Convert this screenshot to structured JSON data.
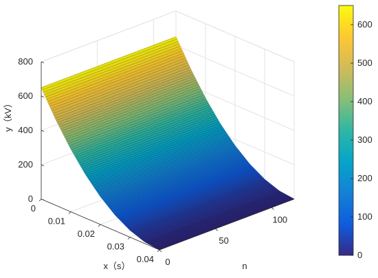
{
  "chart_data": {
    "type": "surface",
    "title": "",
    "xlabel": "x（s）",
    "ylabel": "n",
    "zlabel": "y（kV）",
    "x_range": [
      0,
      0.04
    ],
    "n_range": [
      0,
      120
    ],
    "z_range": [
      0,
      800
    ],
    "x_ticks": [
      "0",
      "0.01",
      "0.02",
      "0.03",
      "0.04"
    ],
    "n_ticks": [
      "0",
      "50",
      "100"
    ],
    "z_ticks": [
      "0",
      "200",
      "400",
      "600",
      "800"
    ],
    "surface": {
      "description_of_shape": "y depends only on x; constant along n",
      "x": [
        0,
        0.005,
        0.01,
        0.015,
        0.02,
        0.025,
        0.03,
        0.035,
        0.04
      ],
      "y": [
        650,
        498,
        366,
        254,
        163,
        92,
        41,
        10,
        0
      ]
    },
    "colorbar": {
      "range": [
        0,
        650
      ],
      "ticks": [
        "0",
        "100",
        "200",
        "300",
        "400",
        "500",
        "600"
      ],
      "colormap": "parula",
      "colors": [
        "#352a87",
        "#0f5cdd",
        "#1481d6",
        "#06a4ca",
        "#2eb7a4",
        "#87bf77",
        "#d1bb59",
        "#fec832",
        "#f9fb0e"
      ]
    },
    "grid": true,
    "colors": {
      "axis": "#262626",
      "grid": "#dcdcdc",
      "background": "#ffffff"
    }
  }
}
